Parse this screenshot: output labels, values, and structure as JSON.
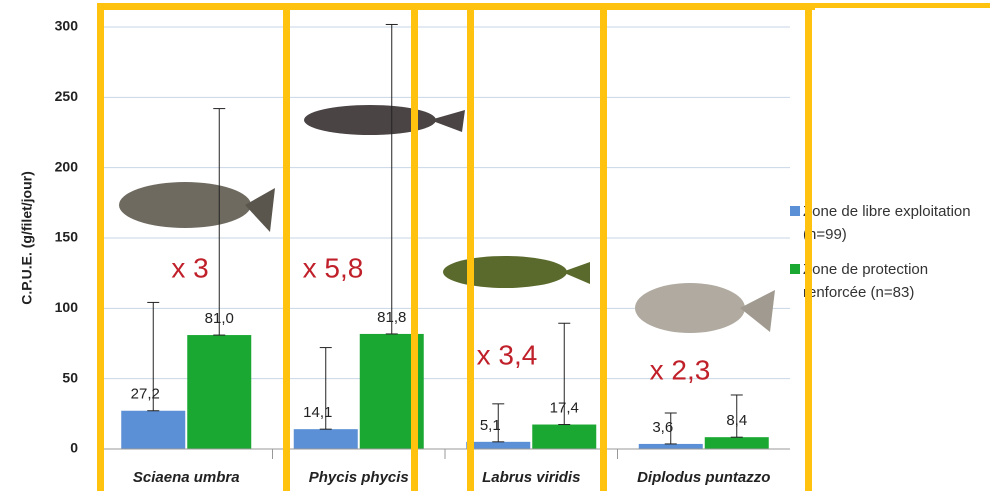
{
  "chart_data": {
    "type": "bar",
    "y_label": "C.P.U.E. (g/filet/jour)",
    "categories": [
      "Sciaena umbra",
      "Phycis phycis",
      "Labrus viridis",
      "Diplodus puntazzo"
    ],
    "series": [
      {
        "name": "Zone de libre exploitation (n=99)",
        "color": "#5b8fd6",
        "values": [
          27.2,
          14.1,
          5.1,
          3.6
        ],
        "value_labels": [
          "27,2",
          "14,1",
          "5,1",
          "3,6"
        ],
        "errors": [
          77,
          58,
          27,
          22
        ]
      },
      {
        "name": "Zone de protection renforcée (n=83)",
        "color": "#1aa832",
        "values": [
          81.0,
          81.8,
          17.4,
          8.4
        ],
        "value_labels": [
          "81,0",
          "81,8",
          "17,4",
          "8,4"
        ],
        "errors": [
          161,
          220,
          72,
          30
        ]
      }
    ],
    "annotations": [
      "x 3",
      "x 5,8",
      "x 3,4",
      "x 2,3"
    ],
    "ylim": [
      0,
      300
    ],
    "yticks": [
      0,
      50,
      100,
      150,
      200,
      250,
      300
    ],
    "grid": true
  }
}
